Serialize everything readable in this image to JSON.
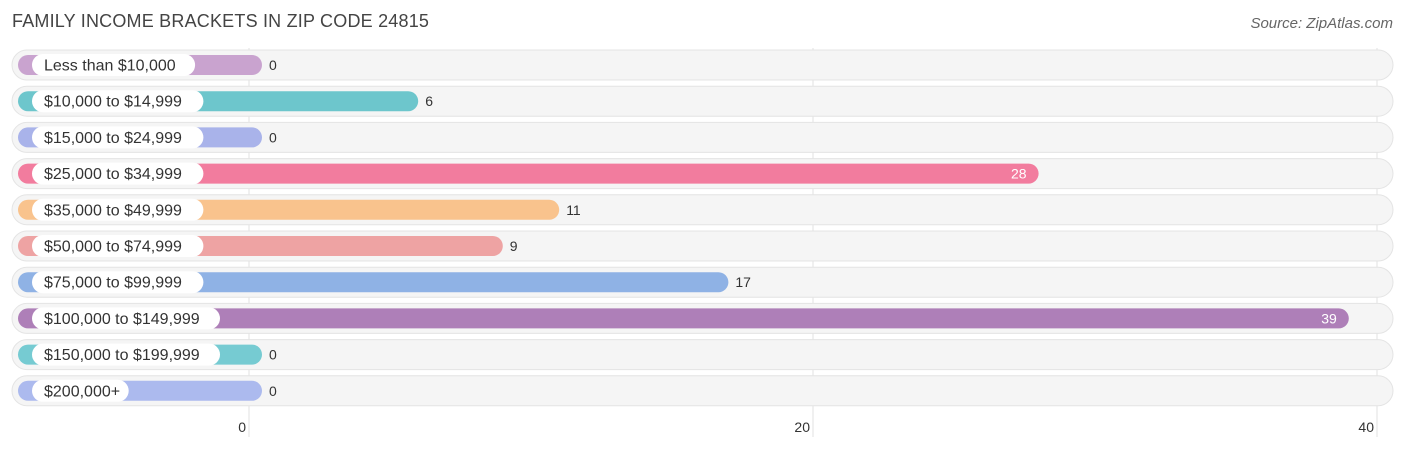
{
  "title": "FAMILY INCOME BRACKETS IN ZIP CODE 24815",
  "source": "Source: ZipAtlas.com",
  "chart_data": {
    "type": "bar",
    "orientation": "horizontal",
    "title": "FAMILY INCOME BRACKETS IN ZIP CODE 24815",
    "categories": [
      "Less than $10,000",
      "$10,000 to $14,999",
      "$15,000 to $24,999",
      "$25,000 to $34,999",
      "$35,000 to $49,999",
      "$50,000 to $74,999",
      "$75,000 to $99,999",
      "$100,000 to $149,999",
      "$150,000 to $199,999",
      "$200,000+"
    ],
    "values": [
      0,
      6,
      0,
      28,
      11,
      9,
      17,
      39,
      0,
      0
    ],
    "value_labels": [
      "0",
      "6",
      "0",
      "28",
      "11",
      "9",
      "17",
      "39",
      "0",
      "0"
    ],
    "colors": [
      "#c9a3cf",
      "#6dc6cc",
      "#a9b3ea",
      "#f27c9e",
      "#f9c38d",
      "#eea3a3",
      "#8fb2e5",
      "#ae7fb8",
      "#76cbd2",
      "#acbaee"
    ],
    "xlim": [
      0,
      40
    ],
    "xticks": [
      0,
      20,
      40
    ],
    "xtick_labels": [
      "0",
      "20",
      "40"
    ],
    "grid": true
  }
}
